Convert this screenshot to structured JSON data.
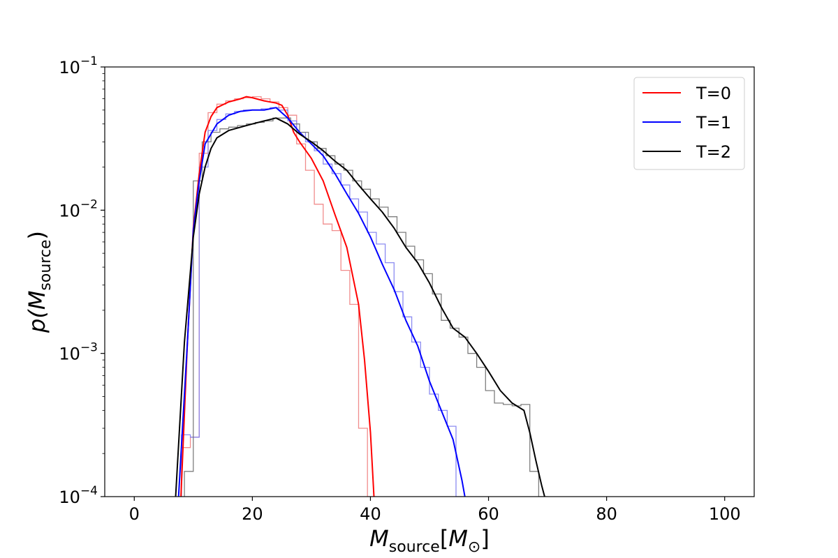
{
  "chart_data": {
    "type": "line",
    "title": "",
    "xlabel": {
      "base": "M",
      "sub": "source",
      "bracket_open": "[",
      "inner": "M",
      "inner_sub": "⊙",
      "bracket_close": "]"
    },
    "ylabel": {
      "prefix": "p(",
      "base": "M",
      "sub": "source",
      "suffix": ")"
    },
    "x_scale": "linear",
    "y_scale": "log",
    "xlim": [
      -5,
      105
    ],
    "ylim": [
      0.0001,
      0.1
    ],
    "x_ticks": [
      0,
      20,
      40,
      60,
      80,
      100
    ],
    "x_tick_labels": [
      "0",
      "20",
      "40",
      "60",
      "80",
      "100"
    ],
    "y_ticks": [
      {
        "value": 0.1,
        "base": "10",
        "exp": "−1"
      },
      {
        "value": 0.01,
        "base": "10",
        "exp": "−2"
      },
      {
        "value": 0.001,
        "base": "10",
        "exp": "−3"
      },
      {
        "value": 0.0001,
        "base": "10",
        "exp": "−4"
      }
    ],
    "grid": false,
    "legend_position": "top-right",
    "series": [
      {
        "name": "T=0",
        "color": "#ff0000",
        "hist_color": "#f08080",
        "kde": [
          [
            7.9,
            0.0001
          ],
          [
            9,
            0.0012
          ],
          [
            10,
            0.0075
          ],
          [
            11,
            0.018
          ],
          [
            12,
            0.035
          ],
          [
            13,
            0.045
          ],
          [
            14,
            0.052
          ],
          [
            16,
            0.057
          ],
          [
            18,
            0.06
          ],
          [
            19,
            0.062
          ],
          [
            20,
            0.061
          ],
          [
            22,
            0.058
          ],
          [
            24,
            0.056
          ],
          [
            25,
            0.054
          ],
          [
            26,
            0.046
          ],
          [
            27,
            0.035
          ],
          [
            28,
            0.03
          ],
          [
            30,
            0.023
          ],
          [
            32,
            0.016
          ],
          [
            34,
            0.0093
          ],
          [
            36,
            0.0055
          ],
          [
            38,
            0.0022
          ],
          [
            39,
            0.0009
          ],
          [
            40,
            0.00028
          ],
          [
            40.6,
            0.0001
          ]
        ],
        "hist_edges": [
          8,
          9.5,
          11,
          12.5,
          14,
          15.5,
          17,
          18.5,
          20,
          21.5,
          23,
          24.5,
          26,
          27.5,
          29,
          30.5,
          32,
          33.5,
          35,
          36.5,
          38,
          39.5,
          41
        ],
        "hist_values": [
          0.00022,
          0.00026,
          0.025,
          0.048,
          0.055,
          0.058,
          0.06,
          0.061,
          0.062,
          0.06,
          0.057,
          0.052,
          0.046,
          0.029,
          0.019,
          0.011,
          0.008,
          0.0072,
          0.0038,
          0.0022,
          0.0003,
          0.0001
        ]
      },
      {
        "name": "T=1",
        "color": "#0000ff",
        "hist_color": "#8080f0",
        "kde": [
          [
            7.5,
            0.0001
          ],
          [
            9,
            0.0012
          ],
          [
            10,
            0.0072
          ],
          [
            11,
            0.016
          ],
          [
            12,
            0.029
          ],
          [
            14,
            0.04
          ],
          [
            16,
            0.046
          ],
          [
            18,
            0.049
          ],
          [
            20,
            0.05
          ],
          [
            22,
            0.05
          ],
          [
            24,
            0.052
          ],
          [
            26,
            0.044
          ],
          [
            28,
            0.035
          ],
          [
            30,
            0.029
          ],
          [
            32,
            0.024
          ],
          [
            34,
            0.018
          ],
          [
            36,
            0.013
          ],
          [
            38,
            0.0095
          ],
          [
            40,
            0.0065
          ],
          [
            42,
            0.0042
          ],
          [
            44,
            0.0028
          ],
          [
            46,
            0.0017
          ],
          [
            48,
            0.00113
          ],
          [
            50,
            0.00064
          ],
          [
            52,
            0.0004
          ],
          [
            54,
            0.00025
          ],
          [
            55.5,
            0.00013
          ],
          [
            56,
            0.0001
          ]
        ],
        "hist_edges": [
          8,
          9.5,
          11,
          12.5,
          14,
          15.5,
          17,
          18.5,
          20,
          21.5,
          23,
          24.5,
          26,
          27.5,
          29,
          30.5,
          32,
          33.5,
          35,
          36.5,
          38,
          39.5,
          41,
          42.5,
          44,
          45.5,
          47,
          48.5,
          50,
          51.5,
          53,
          54.5,
          56
        ],
        "hist_values": [
          0.00027,
          0.00026,
          0.02,
          0.036,
          0.043,
          0.047,
          0.049,
          0.05,
          0.05,
          0.051,
          0.052,
          0.05,
          0.042,
          0.035,
          0.03,
          0.026,
          0.021,
          0.018,
          0.015,
          0.012,
          0.0097,
          0.007,
          0.0058,
          0.0043,
          0.0027,
          0.0018,
          0.0012,
          0.0008,
          0.00052,
          0.0004,
          0.00031,
          0.0001
        ]
      },
      {
        "name": "T=2",
        "color": "#000000",
        "hist_color": "#707070",
        "kde": [
          [
            7,
            0.0001
          ],
          [
            8.5,
            0.0012
          ],
          [
            10,
            0.0065
          ],
          [
            11,
            0.013
          ],
          [
            12,
            0.02
          ],
          [
            13,
            0.027
          ],
          [
            14,
            0.032
          ],
          [
            16,
            0.036
          ],
          [
            18,
            0.038
          ],
          [
            20,
            0.04
          ],
          [
            22,
            0.042
          ],
          [
            24,
            0.044
          ],
          [
            26,
            0.04
          ],
          [
            28,
            0.034
          ],
          [
            30,
            0.03
          ],
          [
            32,
            0.026
          ],
          [
            34,
            0.022
          ],
          [
            36,
            0.019
          ],
          [
            38,
            0.015
          ],
          [
            40,
            0.012
          ],
          [
            42,
            0.0097
          ],
          [
            44,
            0.0075
          ],
          [
            46,
            0.0055
          ],
          [
            48,
            0.0043
          ],
          [
            50,
            0.0031
          ],
          [
            52,
            0.0021
          ],
          [
            54,
            0.0015
          ],
          [
            56,
            0.0013
          ],
          [
            58,
            0.001
          ],
          [
            60,
            0.00075
          ],
          [
            62,
            0.00055
          ],
          [
            64,
            0.00045
          ],
          [
            66,
            0.0004
          ],
          [
            67,
            0.00028
          ],
          [
            68,
            0.00018
          ],
          [
            69,
            0.00012
          ],
          [
            69.5,
            0.0001
          ]
        ],
        "hist_edges": [
          8.5,
          10,
          11.5,
          13,
          14.5,
          16,
          17.5,
          19,
          20.5,
          22,
          23.5,
          25,
          26.5,
          28,
          29.5,
          31,
          32.5,
          34,
          35.5,
          37,
          38.5,
          40,
          41.5,
          43,
          44.5,
          46,
          47.5,
          49,
          50.5,
          52,
          53.5,
          55,
          56.5,
          58,
          59.5,
          61,
          62.5,
          64,
          65.5,
          67,
          68.5,
          70
        ],
        "hist_values": [
          0.00015,
          0.016,
          0.03,
          0.035,
          0.037,
          0.038,
          0.039,
          0.04,
          0.041,
          0.042,
          0.044,
          0.044,
          0.04,
          0.035,
          0.03,
          0.027,
          0.024,
          0.021,
          0.019,
          0.016,
          0.014,
          0.012,
          0.0105,
          0.009,
          0.007,
          0.0056,
          0.0045,
          0.0036,
          0.0026,
          0.0017,
          0.0015,
          0.0013,
          0.001,
          0.0008,
          0.00055,
          0.00045,
          0.00044,
          0.00043,
          0.00044,
          0.00015,
          0.0001
        ]
      }
    ]
  }
}
